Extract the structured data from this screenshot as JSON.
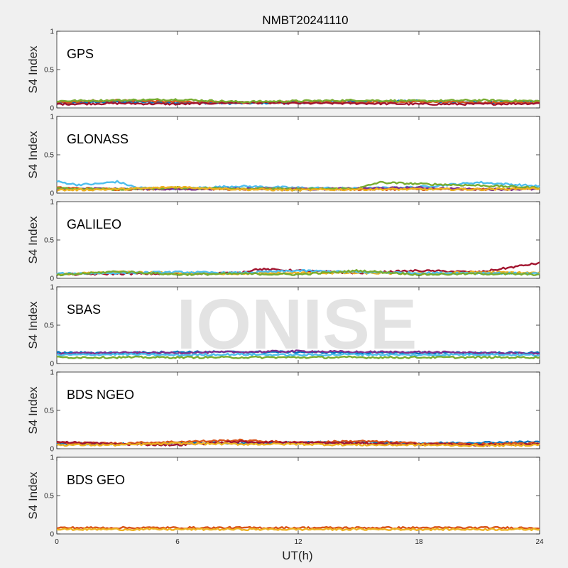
{
  "figure": {
    "title": "NMBT20241110",
    "xlabel": "UT(h)",
    "watermark": "IONISE",
    "background": "#f0f0f0",
    "axes_background": "#ffffff"
  },
  "chart_data": {
    "type": "line",
    "x_range": [
      0,
      24
    ],
    "x_ticks": [
      0,
      6,
      12,
      18,
      24
    ],
    "y_range": [
      0,
      1
    ],
    "y_ticks": [
      0,
      0.5,
      1
    ],
    "ylabel": "S4 Index",
    "grid": false,
    "legend": "none",
    "series_colors": [
      "#0072bd",
      "#d95319",
      "#edb120",
      "#7e2f8e",
      "#77ac30",
      "#4dbeee",
      "#a2142f"
    ],
    "panels": [
      {
        "name": "GPS",
        "series": [
          {
            "color": "#0072bd",
            "x": [
              0,
              3,
              6,
              9,
              12,
              15,
              18,
              21,
              24
            ],
            "y": [
              0.06,
              0.08,
              0.07,
              0.06,
              0.07,
              0.08,
              0.09,
              0.07,
              0.08
            ]
          },
          {
            "color": "#d95319",
            "x": [
              0,
              3,
              6,
              9,
              12,
              15,
              18,
              21,
              24
            ],
            "y": [
              0.07,
              0.1,
              0.08,
              0.07,
              0.08,
              0.07,
              0.08,
              0.07,
              0.07
            ]
          },
          {
            "color": "#a2142f",
            "x": [
              0,
              3,
              6,
              9,
              12,
              15,
              18,
              21,
              24
            ],
            "y": [
              0.05,
              0.06,
              0.05,
              0.07,
              0.06,
              0.06,
              0.05,
              0.05,
              0.06
            ]
          },
          {
            "color": "#77ac30",
            "x": [
              0,
              3,
              6,
              9,
              12,
              15,
              18,
              21,
              24
            ],
            "y": [
              0.09,
              0.1,
              0.11,
              0.08,
              0.09,
              0.1,
              0.09,
              0.1,
              0.09
            ]
          }
        ]
      },
      {
        "name": "GLONASS",
        "series": [
          {
            "color": "#4dbeee",
            "x": [
              0,
              1,
              2,
              3,
              4,
              6,
              9,
              12,
              15,
              18,
              21,
              24
            ],
            "y": [
              0.15,
              0.11,
              0.12,
              0.15,
              0.07,
              0.06,
              0.09,
              0.07,
              0.06,
              0.08,
              0.14,
              0.09
            ]
          },
          {
            "color": "#d95319",
            "x": [
              0,
              3,
              6,
              9,
              12,
              15,
              18,
              21,
              24
            ],
            "y": [
              0.07,
              0.05,
              0.06,
              0.05,
              0.06,
              0.05,
              0.05,
              0.05,
              0.06
            ]
          },
          {
            "color": "#7e2f8e",
            "x": [
              0,
              3,
              6,
              9,
              12,
              15,
              18,
              21,
              24
            ],
            "y": [
              0.05,
              0.06,
              0.05,
              0.06,
              0.05,
              0.06,
              0.07,
              0.05,
              0.05
            ]
          },
          {
            "color": "#77ac30",
            "x": [
              0,
              3,
              6,
              9,
              12,
              15,
              16,
              18,
              21,
              24
            ],
            "y": [
              0.06,
              0.05,
              0.07,
              0.06,
              0.05,
              0.06,
              0.14,
              0.12,
              0.1,
              0.07
            ]
          },
          {
            "color": "#edb120",
            "x": [
              0,
              3,
              6,
              9,
              12,
              15,
              18,
              21,
              24
            ],
            "y": [
              0.04,
              0.05,
              0.08,
              0.05,
              0.04,
              0.05,
              0.05,
              0.05,
              0.06
            ]
          }
        ]
      },
      {
        "name": "GALILEO",
        "series": [
          {
            "color": "#a2142f",
            "x": [
              0,
              3,
              6,
              9,
              10,
              12,
              15,
              18,
              21,
              24
            ],
            "y": [
              0.05,
              0.06,
              0.06,
              0.07,
              0.12,
              0.1,
              0.07,
              0.1,
              0.08,
              0.2
            ]
          },
          {
            "color": "#edb120",
            "x": [
              0,
              3,
              6,
              9,
              12,
              15,
              18,
              21,
              24
            ],
            "y": [
              0.05,
              0.08,
              0.07,
              0.06,
              0.07,
              0.07,
              0.06,
              0.08,
              0.07
            ]
          },
          {
            "color": "#4dbeee",
            "x": [
              0,
              3,
              6,
              9,
              12,
              15,
              18,
              21,
              24
            ],
            "y": [
              0.06,
              0.07,
              0.08,
              0.07,
              0.1,
              0.08,
              0.07,
              0.07,
              0.06
            ]
          },
          {
            "color": "#77ac30",
            "x": [
              0,
              3,
              6,
              9,
              12,
              15,
              18,
              21,
              24
            ],
            "y": [
              0.04,
              0.09,
              0.05,
              0.06,
              0.05,
              0.1,
              0.05,
              0.06,
              0.05
            ]
          }
        ]
      },
      {
        "name": "SBAS",
        "series": [
          {
            "color": "#0072bd",
            "x": [
              0,
              3,
              6,
              9,
              12,
              15,
              18,
              21,
              24
            ],
            "y": [
              0.14,
              0.14,
              0.15,
              0.15,
              0.15,
              0.14,
              0.14,
              0.14,
              0.14
            ]
          },
          {
            "color": "#7e2f8e",
            "x": [
              0,
              3,
              6,
              9,
              12,
              15,
              18,
              21,
              24
            ],
            "y": [
              0.13,
              0.14,
              0.14,
              0.15,
              0.16,
              0.15,
              0.15,
              0.14,
              0.13
            ]
          },
          {
            "color": "#4dbeee",
            "x": [
              0,
              3,
              6,
              9,
              12,
              15,
              18,
              21,
              24
            ],
            "y": [
              0.11,
              0.12,
              0.11,
              0.12,
              0.11,
              0.12,
              0.11,
              0.12,
              0.11
            ]
          },
          {
            "color": "#77ac30",
            "x": [
              0,
              3,
              6,
              9,
              12,
              15,
              18,
              21,
              24
            ],
            "y": [
              0.08,
              0.08,
              0.08,
              0.08,
              0.08,
              0.08,
              0.08,
              0.08,
              0.08
            ]
          }
        ]
      },
      {
        "name": "BDS NGEO",
        "series": [
          {
            "color": "#0072bd",
            "x": [
              0,
              3,
              6,
              9,
              12,
              15,
              18,
              21,
              24
            ],
            "y": [
              0.07,
              0.06,
              0.08,
              0.07,
              0.08,
              0.09,
              0.07,
              0.08,
              0.09
            ]
          },
          {
            "color": "#d95319",
            "x": [
              0,
              3,
              6,
              9,
              12,
              15,
              18,
              21,
              24
            ],
            "y": [
              0.08,
              0.07,
              0.09,
              0.11,
              0.08,
              0.1,
              0.07,
              0.06,
              0.07
            ]
          },
          {
            "color": "#a2142f",
            "x": [
              0,
              3,
              6,
              9,
              12,
              15,
              18,
              21,
              24
            ],
            "y": [
              0.09,
              0.06,
              0.05,
              0.09,
              0.08,
              0.07,
              0.06,
              0.05,
              0.06
            ]
          },
          {
            "color": "#edb120",
            "x": [
              0,
              3,
              6,
              9,
              12,
              15,
              18,
              21,
              24
            ],
            "y": [
              0.05,
              0.05,
              0.07,
              0.06,
              0.06,
              0.05,
              0.05,
              0.04,
              0.05
            ]
          }
        ]
      },
      {
        "name": "BDS GEO",
        "series": [
          {
            "color": "#d95319",
            "x": [
              0,
              6,
              12,
              18,
              24
            ],
            "y": [
              0.08,
              0.08,
              0.08,
              0.08,
              0.08
            ]
          },
          {
            "color": "#edb120",
            "x": [
              0,
              6,
              12,
              18,
              24
            ],
            "y": [
              0.06,
              0.06,
              0.06,
              0.06,
              0.06
            ]
          }
        ]
      }
    ]
  }
}
